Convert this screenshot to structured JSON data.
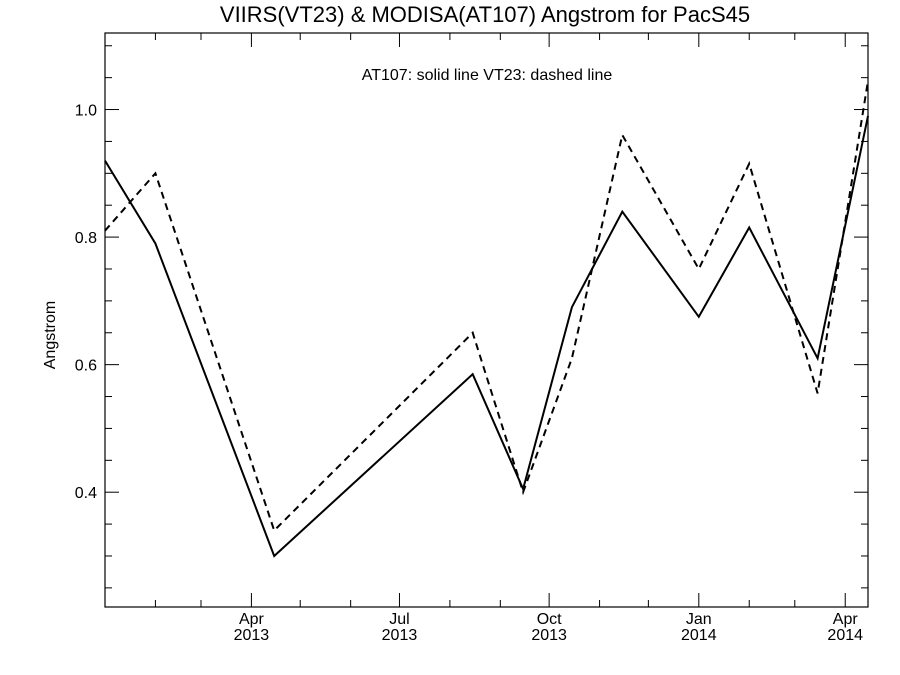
{
  "chart_data": {
    "type": "line",
    "title": "VIIRS(VT23) & MODISA(AT107)  Angstrom for PacS45",
    "annotation": "AT107: solid line   VT23: dashed line",
    "xlabel": "",
    "ylabel": "Angstrom",
    "xlim": [
      "2013-01-01",
      "2014-04-15"
    ],
    "ylim": [
      0.22,
      1.12
    ],
    "y_ticks": [
      0.4,
      0.6,
      0.8,
      1.0
    ],
    "y_tick_labels": [
      "0.4",
      "0.6",
      "0.8",
      "1.0"
    ],
    "x_ticks": [
      {
        "date": "2013-04-01",
        "month": "Apr",
        "year": "2013"
      },
      {
        "date": "2013-07-01",
        "month": "Jul",
        "year": "2013"
      },
      {
        "date": "2013-10-01",
        "month": "Oct",
        "year": "2013"
      },
      {
        "date": "2014-01-01",
        "month": "Jan",
        "year": "2014"
      },
      {
        "date": "2014-04-01",
        "month": "Apr",
        "year": "2014"
      }
    ],
    "grid": false,
    "series": [
      {
        "name": "AT107",
        "style": "solid",
        "color": "#000000",
        "x": [
          "2013-01-01",
          "2013-02-01",
          "2013-04-15",
          "2013-08-15",
          "2013-09-15",
          "2013-10-15",
          "2013-11-15",
          "2014-01-01",
          "2014-02-01",
          "2014-03-15",
          "2014-04-15"
        ],
        "y": [
          0.92,
          0.79,
          0.3,
          0.585,
          0.405,
          0.69,
          0.84,
          0.675,
          0.815,
          0.61,
          0.99
        ]
      },
      {
        "name": "VT23",
        "style": "dashed",
        "color": "#000000",
        "x": [
          "2013-01-01",
          "2013-02-01",
          "2013-04-15",
          "2013-08-15",
          "2013-09-15",
          "2013-10-15",
          "2013-11-15",
          "2014-01-01",
          "2014-02-01",
          "2014-03-15",
          "2014-04-15"
        ],
        "y": [
          0.81,
          0.9,
          0.34,
          0.65,
          0.4,
          0.61,
          0.96,
          0.75,
          0.915,
          0.555,
          1.045
        ]
      }
    ]
  }
}
